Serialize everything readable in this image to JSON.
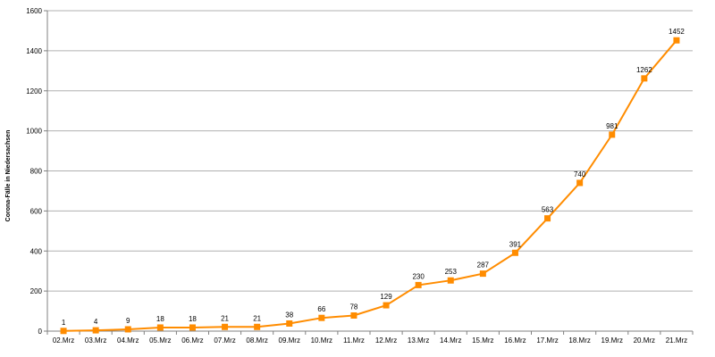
{
  "colors": {
    "series": "#FF8C00",
    "grid": "#B0B0B0",
    "axis": "#808080"
  },
  "chart_data": {
    "type": "line",
    "title": "",
    "xlabel": "",
    "ylabel": "Corona-Fälle in Niedersachsen",
    "ylim": [
      0,
      1600
    ],
    "yticks": [
      0,
      200,
      400,
      600,
      800,
      1000,
      1200,
      1400,
      1600
    ],
    "grid": true,
    "legend": "none",
    "marker": "square",
    "categories": [
      "02.Mrz",
      "03.Mrz",
      "04.Mrz",
      "05.Mrz",
      "06.Mrz",
      "07.Mrz",
      "08.Mrz",
      "09.Mrz",
      "10.Mrz",
      "11.Mrz",
      "12.Mrz",
      "13.Mrz",
      "14.Mrz",
      "15.Mrz",
      "16.Mrz",
      "17.Mrz",
      "18.Mrz",
      "19.Mrz",
      "20.Mrz",
      "21.Mrz"
    ],
    "series": [
      {
        "values": [
          1,
          4,
          9,
          18,
          18,
          21,
          21,
          38,
          66,
          78,
          129,
          230,
          253,
          287,
          391,
          563,
          740,
          981,
          1262,
          1452
        ]
      }
    ]
  }
}
